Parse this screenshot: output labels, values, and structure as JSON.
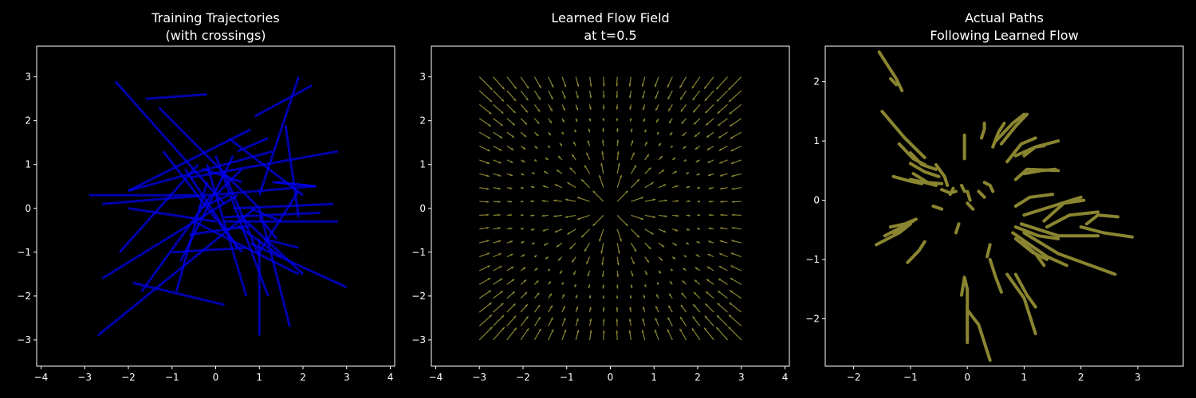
{
  "chart_data": [
    {
      "type": "line",
      "title_line1": "Training Trajectories",
      "title_line2": "(with crossings)",
      "xlim": [
        -4.1,
        4.1
      ],
      "ylim": [
        -3.6,
        3.7
      ],
      "xticks": [
        -4,
        -3,
        -2,
        -1,
        0,
        1,
        2,
        3,
        4
      ],
      "yticks": [
        -3,
        -2,
        -1,
        0,
        1,
        2,
        3
      ],
      "color": "#0000ee",
      "segments": [
        [
          [
            -2.3,
            2.9
          ],
          [
            0.2,
            0.1
          ]
        ],
        [
          [
            -1.6,
            2.5
          ],
          [
            -0.2,
            2.6
          ]
        ],
        [
          [
            -1.3,
            2.3
          ],
          [
            1.0,
            0.0
          ]
        ],
        [
          [
            -2.7,
            -2.9
          ],
          [
            0.9,
            0.0
          ]
        ],
        [
          [
            -2.6,
            -1.6
          ],
          [
            0.5,
            0.3
          ]
        ],
        [
          [
            -2.9,
            0.3
          ],
          [
            -0.4,
            0.3
          ]
        ],
        [
          [
            -2.2,
            -1.0
          ],
          [
            -0.4,
            1.0
          ]
        ],
        [
          [
            -2.0,
            0.4
          ],
          [
            0.8,
            1.8
          ]
        ],
        [
          [
            -1.9,
            -1.7
          ],
          [
            0.2,
            -2.2
          ]
        ],
        [
          [
            -2.0,
            0.4
          ],
          [
            1.3,
            1.3
          ]
        ],
        [
          [
            -2.6,
            0.1
          ],
          [
            2.2,
            0.5
          ]
        ],
        [
          [
            -1.2,
            1.3
          ],
          [
            0.6,
            -1.0
          ]
        ],
        [
          [
            -0.9,
            -1.9
          ],
          [
            -0.2,
            0.6
          ]
        ],
        [
          [
            -1.0,
            -1.0
          ],
          [
            0.7,
            -0.9
          ]
        ],
        [
          [
            0.0,
            1.2
          ],
          [
            1.2,
            -2.0
          ]
        ],
        [
          [
            -0.8,
            -1.2
          ],
          [
            0.4,
            1.2
          ]
        ],
        [
          [
            -0.6,
            -0.6
          ],
          [
            0.8,
            -0.4
          ]
        ],
        [
          [
            -0.3,
            0.9
          ],
          [
            0.6,
            0.6
          ]
        ],
        [
          [
            0.3,
            1.6
          ],
          [
            2.0,
            0.3
          ]
        ],
        [
          [
            1.0,
            -0.2
          ],
          [
            1.4,
            -0.7
          ]
        ],
        [
          [
            1.0,
            0.3
          ],
          [
            1.9,
            3.0
          ]
        ],
        [
          [
            0.9,
            2.1
          ],
          [
            2.2,
            2.8
          ]
        ],
        [
          [
            0.5,
            -0.4
          ],
          [
            1.5,
            -1.1
          ]
        ],
        [
          [
            -0.6,
            0.7
          ],
          [
            2.8,
            1.3
          ]
        ],
        [
          [
            0.4,
            0.0
          ],
          [
            2.7,
            0.1
          ]
        ],
        [
          [
            -0.5,
            -0.3
          ],
          [
            1.9,
            -1.5
          ]
        ],
        [
          [
            1.3,
            0.6
          ],
          [
            2.3,
            0.5
          ]
        ],
        [
          [
            0.2,
            -0.2
          ],
          [
            2.4,
            -0.1
          ]
        ],
        [
          [
            1.0,
            -2.9
          ],
          [
            1.0,
            -0.7
          ]
        ],
        [
          [
            -0.2,
            1.0
          ],
          [
            0.7,
            -2.0
          ]
        ],
        [
          [
            1.0,
            0.0
          ],
          [
            1.7,
            -2.7
          ]
        ],
        [
          [
            1.0,
            -1.0
          ],
          [
            1.9,
            0.4
          ]
        ],
        [
          [
            1.4,
            0.6
          ],
          [
            2.3,
            0.5
          ]
        ],
        [
          [
            0.2,
            -0.3
          ],
          [
            2.8,
            -0.3
          ]
        ],
        [
          [
            0.8,
            -0.8
          ],
          [
            3.0,
            -1.8
          ]
        ],
        [
          [
            1.1,
            -0.7
          ],
          [
            1.9,
            -0.9
          ]
        ],
        [
          [
            -1.7,
            -1.9
          ],
          [
            -0.1,
            0.3
          ]
        ],
        [
          [
            -0.7,
            0.9
          ],
          [
            0.5,
            -0.9
          ]
        ],
        [
          [
            0.6,
            -0.2
          ],
          [
            2.0,
            -1.5
          ]
        ],
        [
          [
            0.8,
            0.0
          ],
          [
            1.5,
            -0.3
          ]
        ],
        [
          [
            -0.4,
            0.0
          ],
          [
            0.3,
            0.3
          ]
        ],
        [
          [
            0.0,
            0.3
          ],
          [
            0.6,
            0.9
          ]
        ],
        [
          [
            0.2,
            0.8
          ],
          [
            1.0,
            -1.1
          ]
        ],
        [
          [
            0.5,
            1.3
          ],
          [
            1.2,
            1.6
          ]
        ],
        [
          [
            1.6,
            1.9
          ],
          [
            1.9,
            -0.2
          ]
        ],
        [
          [
            -2.0,
            0.0
          ],
          [
            0.0,
            -0.3
          ]
        ]
      ]
    },
    {
      "type": "quiver",
      "title_line1": "Learned Flow Field",
      "title_line2": "at t=0.5",
      "xlim": [
        -4.1,
        4.1
      ],
      "ylim": [
        -3.6,
        3.7
      ],
      "xticks": [
        -4,
        -3,
        -2,
        -1,
        0,
        1,
        2,
        3,
        4
      ],
      "yticks": [
        -3,
        -2,
        -1,
        0,
        1,
        2,
        3
      ],
      "color": "#8a8530",
      "grid_range": [
        -3,
        3
      ],
      "grid_n": 20
    },
    {
      "type": "line",
      "title_line1": "Actual Paths",
      "title_line2": "Following Learned Flow",
      "xlim": [
        -2.5,
        3.8
      ],
      "ylim": [
        -2.8,
        2.6
      ],
      "xticks": [
        -2,
        -1,
        0,
        1,
        2,
        3
      ],
      "yticks": [
        -2,
        -1,
        0,
        1,
        2
      ],
      "color": "#8a8530",
      "paths": [
        [
          [
            -1.55,
            2.5
          ],
          [
            -1.25,
            2.05
          ],
          [
            -1.15,
            1.85
          ]
        ],
        [
          [
            -1.35,
            2.05
          ],
          [
            -1.25,
            1.95
          ]
        ],
        [
          [
            -1.5,
            1.5
          ],
          [
            -1.1,
            1.05
          ],
          [
            -0.75,
            0.72
          ]
        ],
        [
          [
            -1.2,
            0.95
          ],
          [
            -0.95,
            0.7
          ],
          [
            -0.75,
            0.6
          ]
        ],
        [
          [
            -1.0,
            0.8
          ],
          [
            -0.8,
            0.6
          ],
          [
            -0.55,
            0.52
          ]
        ],
        [
          [
            -1.0,
            0.62
          ],
          [
            -0.75,
            0.48
          ],
          [
            -0.5,
            0.4
          ]
        ],
        [
          [
            -0.95,
            0.45
          ],
          [
            -0.7,
            0.3
          ],
          [
            -0.45,
            0.28
          ]
        ],
        [
          [
            -1.3,
            0.4
          ],
          [
            -1.0,
            0.32
          ],
          [
            -0.8,
            0.28
          ]
        ],
        [
          [
            -1.0,
            0.35
          ],
          [
            -0.75,
            0.3
          ],
          [
            -0.55,
            0.25
          ]
        ],
        [
          [
            -0.55,
            0.6
          ],
          [
            -0.4,
            0.4
          ],
          [
            -0.35,
            0.25
          ]
        ],
        [
          [
            -0.25,
            0.2
          ],
          [
            -0.3,
            0.1
          ]
        ],
        [
          [
            -0.45,
            0.18
          ],
          [
            -0.3,
            0.12
          ],
          [
            -0.2,
            0.15
          ]
        ],
        [
          [
            -0.1,
            0.25
          ],
          [
            -0.05,
            0.15
          ]
        ],
        [
          [
            -0.6,
            -0.1
          ],
          [
            -0.45,
            -0.15
          ]
        ],
        [
          [
            -1.6,
            -0.75
          ],
          [
            -1.2,
            -0.55
          ],
          [
            -1.0,
            -0.4
          ]
        ],
        [
          [
            -1.45,
            -0.6
          ],
          [
            -1.15,
            -0.45
          ],
          [
            -0.95,
            -0.35
          ]
        ],
        [
          [
            -1.35,
            -0.45
          ],
          [
            -1.1,
            -0.4
          ],
          [
            -0.9,
            -0.32
          ]
        ],
        [
          [
            -1.3,
            -0.55
          ],
          [
            -1.1,
            -0.48
          ]
        ],
        [
          [
            -1.05,
            -1.05
          ],
          [
            -0.85,
            -0.85
          ],
          [
            -0.75,
            -0.7
          ]
        ],
        [
          [
            -0.2,
            -0.55
          ],
          [
            -0.15,
            -0.4
          ]
        ],
        [
          [
            -0.05,
            0.7
          ],
          [
            -0.05,
            0.9
          ],
          [
            -0.05,
            1.1
          ]
        ],
        [
          [
            0.25,
            1.05
          ],
          [
            0.3,
            1.2
          ],
          [
            0.3,
            1.3
          ]
        ],
        [
          [
            0.45,
            0.9
          ],
          [
            0.55,
            1.15
          ],
          [
            0.65,
            1.3
          ]
        ],
        [
          [
            0.5,
            1.0
          ],
          [
            0.8,
            1.3
          ],
          [
            1.0,
            1.45
          ]
        ],
        [
          [
            0.6,
            0.95
          ],
          [
            0.85,
            1.25
          ],
          [
            1.05,
            1.45
          ]
        ],
        [
          [
            0.7,
            0.65
          ],
          [
            0.95,
            0.95
          ],
          [
            1.2,
            1.05
          ]
        ],
        [
          [
            0.85,
            0.75
          ],
          [
            1.2,
            0.9
          ],
          [
            1.6,
            1.0
          ]
        ],
        [
          [
            1.0,
            0.75
          ],
          [
            1.2,
            0.9
          ],
          [
            1.35,
            0.92
          ]
        ],
        [
          [
            0.85,
            0.35
          ],
          [
            1.05,
            0.52
          ],
          [
            1.6,
            0.5
          ]
        ],
        [
          [
            1.0,
            0.45
          ],
          [
            1.3,
            0.5
          ],
          [
            1.55,
            0.52
          ]
        ],
        [
          [
            0.3,
            0.3
          ],
          [
            0.4,
            0.25
          ],
          [
            0.45,
            0.15
          ]
        ],
        [
          [
            0.2,
            0.15
          ],
          [
            0.3,
            0.05
          ]
        ],
        [
          [
            0.0,
            0.15
          ],
          [
            0.05,
            0.0
          ]
        ],
        [
          [
            0.0,
            -0.05
          ],
          [
            0.1,
            -0.15
          ]
        ],
        [
          [
            0.85,
            -0.1
          ],
          [
            1.1,
            0.05
          ],
          [
            1.5,
            0.1
          ]
        ],
        [
          [
            1.0,
            -0.25
          ],
          [
            1.5,
            -0.1
          ],
          [
            2.0,
            0.05
          ]
        ],
        [
          [
            1.35,
            -0.35
          ],
          [
            1.7,
            -0.05
          ],
          [
            2.05,
            0.0
          ]
        ],
        [
          [
            1.4,
            -0.45
          ],
          [
            1.8,
            -0.25
          ],
          [
            2.3,
            -0.2
          ]
        ],
        [
          [
            2.1,
            -0.4
          ],
          [
            2.3,
            -0.25
          ],
          [
            2.65,
            -0.28
          ]
        ],
        [
          [
            2.0,
            -0.45
          ],
          [
            2.4,
            -0.55
          ],
          [
            2.9,
            -0.62
          ]
        ],
        [
          [
            0.85,
            -0.45
          ],
          [
            1.25,
            -0.6
          ],
          [
            1.6,
            -0.65
          ]
        ],
        [
          [
            0.8,
            -0.55
          ],
          [
            1.4,
            -0.95
          ],
          [
            1.75,
            -1.1
          ]
        ],
        [
          [
            1.0,
            -0.55
          ],
          [
            1.6,
            -0.9
          ],
          [
            2.6,
            -1.25
          ]
        ],
        [
          [
            0.95,
            -0.4
          ],
          [
            1.6,
            -0.6
          ],
          [
            2.3,
            -0.6
          ]
        ],
        [
          [
            0.95,
            -0.7
          ],
          [
            1.2,
            -0.9
          ],
          [
            1.35,
            -1.1
          ]
        ],
        [
          [
            0.85,
            -0.65
          ],
          [
            1.15,
            -0.88
          ],
          [
            1.4,
            -1.0
          ]
        ],
        [
          [
            0.85,
            -1.25
          ],
          [
            1.05,
            -1.6
          ],
          [
            1.2,
            -1.8
          ]
        ],
        [
          [
            0.4,
            -1.0
          ],
          [
            0.5,
            -1.3
          ],
          [
            0.6,
            -1.55
          ]
        ],
        [
          [
            0.7,
            -1.25
          ],
          [
            1.0,
            -1.65
          ],
          [
            1.2,
            -2.25
          ]
        ],
        [
          [
            -0.1,
            -1.6
          ],
          [
            -0.05,
            -1.3
          ],
          [
            0.0,
            -1.5
          ],
          [
            0.0,
            -2.4
          ]
        ],
        [
          [
            0.4,
            -2.7
          ],
          [
            0.2,
            -2.1
          ],
          [
            0.0,
            -1.85
          ]
        ],
        [
          [
            0.4,
            -0.75
          ],
          [
            0.35,
            -0.95
          ]
        ]
      ]
    }
  ]
}
